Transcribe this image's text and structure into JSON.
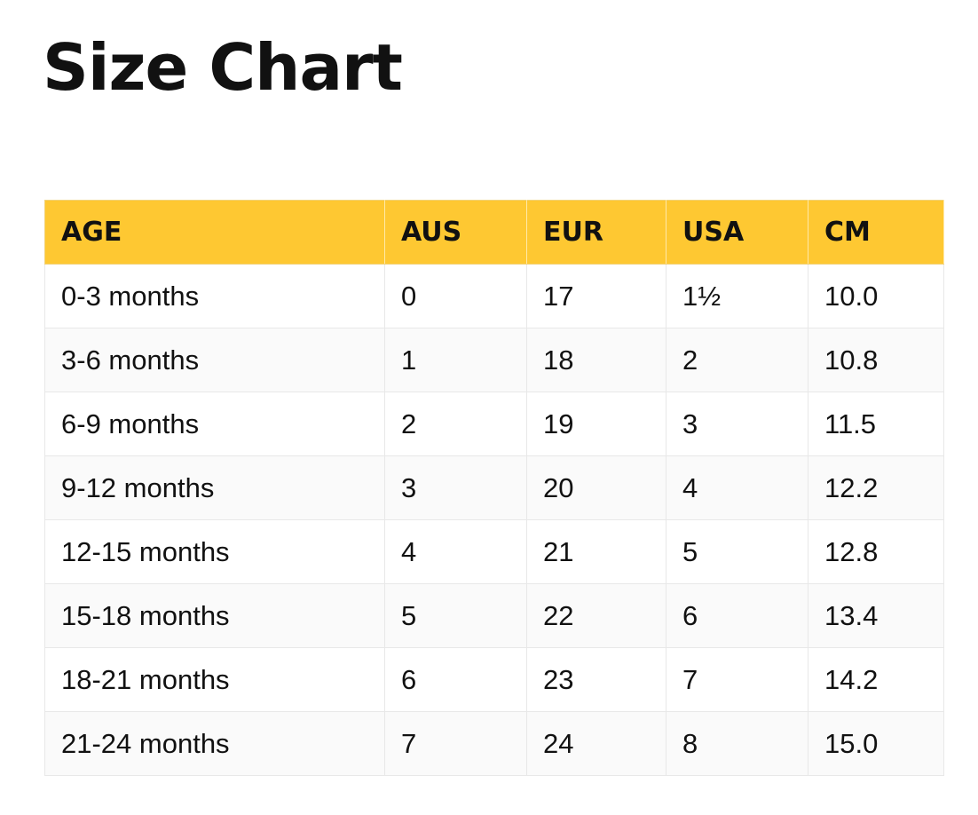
{
  "title": "Size Chart",
  "colors": {
    "header_background": "#fec832",
    "text": "#111111",
    "row_alt_background": "#fafafa",
    "border": "#e8e8e8"
  },
  "table": {
    "headers": [
      "AGE",
      "AUS",
      "EUR",
      "USA",
      "CM"
    ],
    "rows": [
      [
        "0-3 months",
        "0",
        "17",
        "1½",
        "10.0"
      ],
      [
        "3-6 months",
        "1",
        "18",
        "2",
        "10.8"
      ],
      [
        "6-9 months",
        "2",
        "19",
        "3",
        "11.5"
      ],
      [
        "9-12 months",
        "3",
        "20",
        "4",
        "12.2"
      ],
      [
        "12-15 months",
        "4",
        "21",
        "5",
        "12.8"
      ],
      [
        "15-18 months",
        "5",
        "22",
        "6",
        "13.4"
      ],
      [
        "18-21 months",
        "6",
        "23",
        "7",
        "14.2"
      ],
      [
        "21-24 months",
        "7",
        "24",
        "8",
        "15.0"
      ]
    ]
  }
}
